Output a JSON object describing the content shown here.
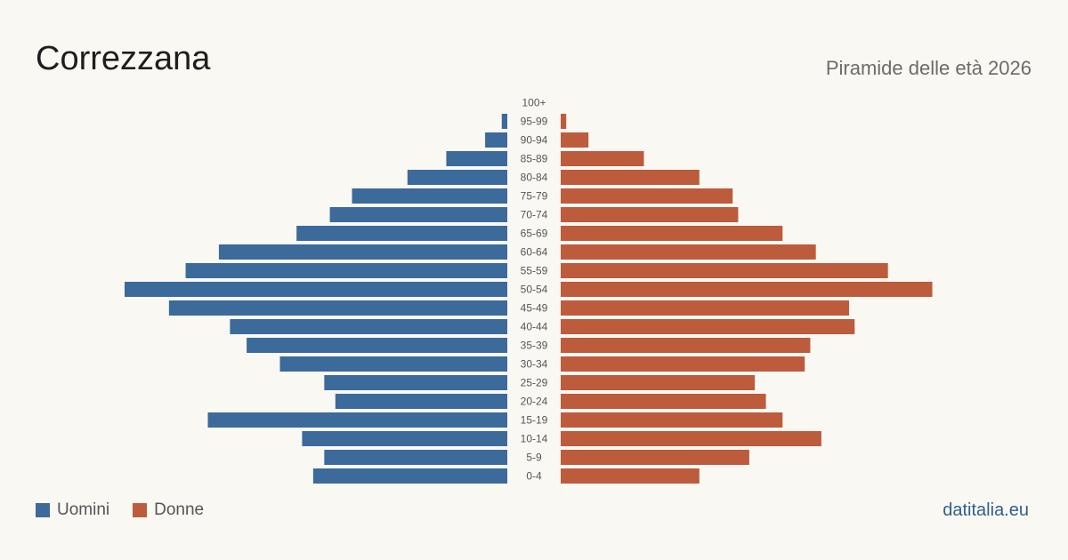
{
  "header": {
    "title": "Correzzana",
    "subtitle": "Piramide delle età 2026"
  },
  "legend": {
    "men_label": "Uomini",
    "women_label": "Donne"
  },
  "footer": {
    "site": "datitalia.eu"
  },
  "colors": {
    "men": "#3b6a9b",
    "women": "#bc5c3c",
    "age_label": "#555555"
  },
  "chart_data": {
    "type": "bar",
    "orientation": "horizontal-pyramid",
    "categories": [
      "100+",
      "95-99",
      "90-94",
      "85-89",
      "80-84",
      "75-79",
      "70-74",
      "65-69",
      "60-64",
      "55-59",
      "50-54",
      "45-49",
      "40-44",
      "35-39",
      "30-34",
      "25-29",
      "20-24",
      "15-19",
      "10-14",
      "5-9",
      "0-4"
    ],
    "series": [
      {
        "name": "Uomini",
        "values": [
          0,
          1,
          4,
          11,
          18,
          28,
          32,
          38,
          52,
          58,
          69,
          61,
          50,
          47,
          41,
          33,
          31,
          54,
          37,
          33,
          35
        ]
      },
      {
        "name": "Donne",
        "values": [
          0,
          1,
          5,
          15,
          25,
          31,
          32,
          40,
          46,
          59,
          67,
          52,
          53,
          45,
          44,
          35,
          37,
          40,
          47,
          34,
          25
        ]
      }
    ],
    "xlim": [
      0,
      69
    ],
    "legend_position": "bottom-left",
    "grid": false
  }
}
